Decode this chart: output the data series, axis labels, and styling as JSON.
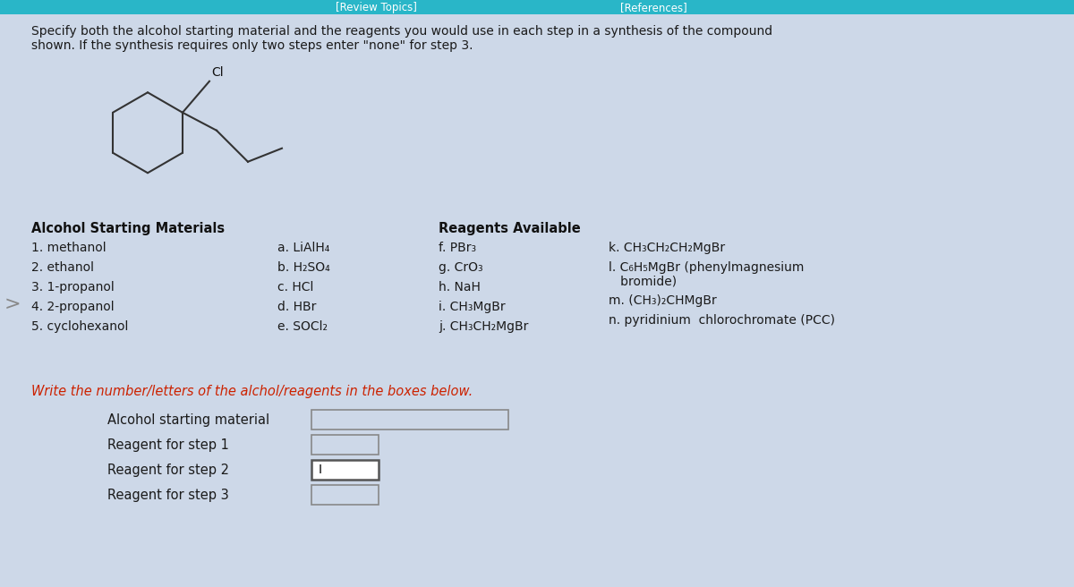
{
  "bg_color": "#cdd8e8",
  "title_bar_color": "#29b6c8",
  "title_text_left": "[Review Topics]",
  "title_text_right": "[References]",
  "main_instruction_1": "Specify both the alcohol starting material and the reagents you would use in each step in a synthesis of the compound",
  "main_instruction_2": "shown. If the synthesis requires only two steps enter \"none\" for step 3.",
  "alcohol_header": "Alcohol Starting Materials",
  "alcohol_items": [
    "1. methanol",
    "2. ethanol",
    "3. 1-propanol",
    "4. 2-propanol",
    "5. cyclohexanol"
  ],
  "reagents_header": "Reagents Available",
  "reagents_col1": [
    "a. LiAlH₄",
    "b. H₂SO₄",
    "c. HCl",
    "d. HBr",
    "e. SOCl₂"
  ],
  "reagents_col2": [
    "f. PBr₃",
    "g. CrO₃",
    "h. NaH",
    "i. CH₃MgBr",
    "j. CH₃CH₂MgBr"
  ],
  "reagents_col3_line1": "k. CH₃CH₂CH₂MgBr",
  "reagents_col3_line2a": "l. C₆H₅MgBr (phenylmagnesium",
  "reagents_col3_line2b": "   bromide)",
  "reagents_col3_line3": "m. (CH₃)₂CHMgBr",
  "reagents_col3_line4": "n. pyridinium  chlorochromate (PCC)",
  "write_instruction": "Write the number/letters of the alchol/reagents in the boxes below.",
  "form_labels": [
    "Alcohol starting material",
    "Reagent for step 1",
    "Reagent for step 2",
    "Reagent for step 3"
  ],
  "text_color": "#1a1a1a",
  "instruction_color": "#cc2200",
  "header_color": "#111111",
  "box_border_color": "#888888",
  "box_fill_color": "#cdd8e8",
  "box_active_fill": "#ffffff",
  "arrow_color": "#888888"
}
